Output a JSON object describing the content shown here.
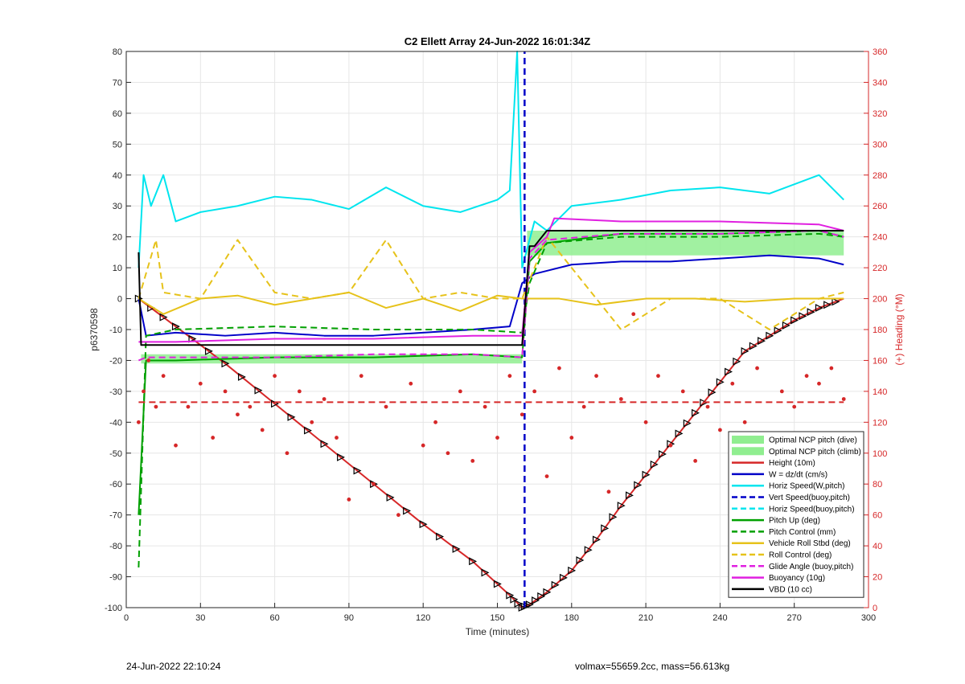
{
  "footer": {
    "timestamp": "24-Jun-2022 22:10:24",
    "volmax_mass": "volmax=55659.2cc, mass=56.613kg"
  },
  "chart_data": {
    "type": "line",
    "title": "C2 Ellett Array 24-Jun-2022 16:01:34Z",
    "xlabel": "Time (minutes)",
    "ylabel": "p6370598",
    "y2label": "(+) Heading (°M)",
    "xlim": [
      0,
      300
    ],
    "ylim": [
      -100,
      80
    ],
    "y2lim": [
      0,
      360
    ],
    "xticks": [
      0,
      30,
      60,
      90,
      120,
      150,
      180,
      210,
      240,
      270,
      300
    ],
    "yticks": [
      -100,
      -90,
      -80,
      -70,
      -60,
      -50,
      -40,
      -30,
      -20,
      -10,
      0,
      10,
      20,
      30,
      40,
      50,
      60,
      70,
      80
    ],
    "y2ticks": [
      0,
      20,
      40,
      60,
      80,
      100,
      120,
      140,
      160,
      180,
      200,
      220,
      240,
      260,
      280,
      300,
      320,
      340,
      360
    ],
    "grid": true,
    "legend_position": "bottom-right",
    "colors": {
      "green_fill": "#90ee90",
      "red": "#d62728",
      "blue": "#0000c8",
      "cyan": "#00e5ee",
      "green": "#00a000",
      "yellow": "#e6c21a",
      "magenta": "#e020e0",
      "black": "#000000"
    },
    "series": [
      {
        "name": "Optimal NCP pitch (dive)",
        "type": "band",
        "x": [
          6,
          160
        ],
        "low": [
          -21,
          -21
        ],
        "high": [
          -18,
          -18
        ]
      },
      {
        "name": "Optimal NCP pitch (climb)",
        "type": "band",
        "x": [
          162,
          290
        ],
        "low": [
          14,
          14
        ],
        "high": [
          22,
          22
        ]
      },
      {
        "name": "Height (10m)",
        "type": "line",
        "x": [
          5,
          20,
          40,
          60,
          80,
          100,
          120,
          140,
          155,
          160,
          163,
          170,
          180,
          190,
          200,
          210,
          220,
          230,
          240,
          250,
          260,
          270,
          280,
          290
        ],
        "y": [
          0,
          -9,
          -21,
          -34,
          -47,
          -60,
          -73,
          -85,
          -96,
          -100,
          -99,
          -95,
          -88,
          -78,
          -67,
          -57,
          -47,
          -37,
          -27,
          -17,
          -12,
          -7,
          -3,
          0
        ]
      },
      {
        "name": "W = dz/dt (cm/s)",
        "type": "line",
        "x": [
          5,
          8,
          20,
          40,
          60,
          80,
          100,
          120,
          140,
          155,
          160,
          165,
          170,
          180,
          200,
          220,
          240,
          260,
          280,
          290
        ],
        "y": [
          0,
          -12,
          -11,
          -12,
          -11,
          -12,
          -12,
          -11,
          -10,
          -9,
          5,
          8,
          9,
          11,
          12,
          12,
          13,
          14,
          13,
          11
        ]
      },
      {
        "name": "Horiz Speed(W,pitch)",
        "type": "line",
        "x": [
          5,
          7,
          10,
          15,
          20,
          30,
          45,
          60,
          75,
          90,
          105,
          120,
          135,
          150,
          155,
          158,
          160,
          165,
          170,
          180,
          200,
          220,
          240,
          260,
          280,
          290
        ],
        "y": [
          10,
          40,
          30,
          40,
          25,
          28,
          30,
          33,
          32,
          29,
          36,
          30,
          28,
          32,
          35,
          80,
          10,
          25,
          22,
          30,
          32,
          35,
          36,
          34,
          40,
          32
        ]
      },
      {
        "name": "Vert Speed(buoy,pitch)",
        "type": "line",
        "x": [
          161,
          161
        ],
        "y": [
          -100,
          80
        ]
      },
      {
        "name": "Horiz Speed(buoy,pitch)",
        "type": "line",
        "x": [],
        "y": []
      },
      {
        "name": "Pitch Up (deg)",
        "type": "line",
        "x": [
          5,
          8,
          20,
          60,
          100,
          140,
          160,
          163,
          170,
          200,
          240,
          280,
          290
        ],
        "y": [
          -70,
          -20,
          -20,
          -19,
          -19,
          -18,
          -19,
          12,
          18,
          21,
          21,
          22,
          20
        ]
      },
      {
        "name": "Pitch Control (mm)",
        "type": "line",
        "x": [
          5,
          8,
          20,
          60,
          100,
          140,
          160,
          163,
          170,
          200,
          240,
          280,
          290
        ],
        "y": [
          -87,
          -12,
          -10,
          -9,
          -10,
          -10,
          -11,
          5,
          18,
          20,
          20,
          21,
          20
        ]
      },
      {
        "name": "Vehicle Roll Stbd (deg)",
        "type": "line",
        "x": [
          5,
          15,
          30,
          45,
          60,
          75,
          90,
          105,
          120,
          135,
          150,
          160,
          165,
          175,
          190,
          210,
          230,
          250,
          270,
          290
        ],
        "y": [
          0,
          -5,
          0,
          1,
          -2,
          0,
          2,
          -3,
          0,
          -4,
          1,
          0,
          0,
          0,
          -2,
          0,
          0,
          -1,
          0,
          0
        ]
      },
      {
        "name": "Roll Control (deg)",
        "type": "line",
        "x": [
          5,
          12,
          15,
          30,
          45,
          60,
          75,
          90,
          105,
          120,
          135,
          150,
          160,
          170,
          180,
          200,
          220,
          240,
          260,
          280,
          290
        ],
        "y": [
          0,
          19,
          2,
          0,
          19,
          2,
          0,
          2,
          19,
          0,
          2,
          0,
          0,
          20,
          10,
          -10,
          0,
          0,
          -10,
          0,
          2
        ]
      },
      {
        "name": "Glide Angle (buoy,pitch)",
        "type": "line",
        "x": [
          5,
          8,
          20,
          60,
          100,
          140,
          160,
          163,
          170,
          200,
          240,
          280,
          290
        ],
        "y": [
          -20,
          -19,
          -19,
          -19,
          -18,
          -18,
          -19,
          13,
          19,
          21,
          21,
          22,
          20
        ]
      },
      {
        "name": "Buoyancy (10g)",
        "type": "line",
        "x": [
          5,
          8,
          20,
          60,
          100,
          140,
          155,
          160,
          163,
          170,
          173,
          200,
          240,
          280,
          290
        ],
        "y": [
          -14,
          -14,
          -14,
          -13,
          -13,
          -12,
          -12,
          -12,
          15,
          20,
          26,
          25,
          25,
          24,
          22
        ]
      },
      {
        "name": "VBD (10 cc)",
        "type": "line",
        "x": [
          5,
          6,
          8,
          50,
          100,
          155,
          157,
          160,
          163,
          165,
          170,
          172,
          200,
          240,
          280,
          290
        ],
        "y": [
          15,
          -15,
          -15,
          -15,
          -15,
          -15,
          -15,
          -15,
          17,
          17,
          22,
          22,
          22,
          22,
          22,
          22
        ]
      },
      {
        "name": "Heading (red dots)",
        "type": "scatter",
        "axis": "y2",
        "x": [
          5,
          7,
          9,
          12,
          15,
          20,
          25,
          30,
          35,
          40,
          45,
          50,
          55,
          60,
          65,
          70,
          75,
          80,
          85,
          90,
          95,
          100,
          105,
          110,
          115,
          120,
          125,
          130,
          135,
          140,
          145,
          150,
          155,
          160,
          165,
          170,
          175,
          180,
          185,
          190,
          195,
          200,
          205,
          210,
          215,
          220,
          225,
          230,
          235,
          240,
          245,
          250,
          255,
          260,
          265,
          270,
          275,
          280,
          285,
          290
        ],
        "y": [
          120,
          140,
          160,
          130,
          150,
          105,
          130,
          145,
          110,
          140,
          125,
          130,
          115,
          150,
          100,
          140,
          120,
          135,
          110,
          70,
          150,
          80,
          130,
          60,
          145,
          105,
          120,
          100,
          140,
          95,
          130,
          110,
          150,
          125,
          140,
          85,
          155,
          110,
          130,
          150,
          75,
          135,
          190,
          120,
          150,
          105,
          140,
          95,
          130,
          115,
          145,
          120,
          155,
          110,
          140,
          130,
          150,
          145,
          155,
          135
        ]
      },
      {
        "name": "Heading desired",
        "type": "line",
        "axis": "y2",
        "x": [
          5,
          290
        ],
        "y": [
          133,
          133
        ]
      }
    ]
  }
}
